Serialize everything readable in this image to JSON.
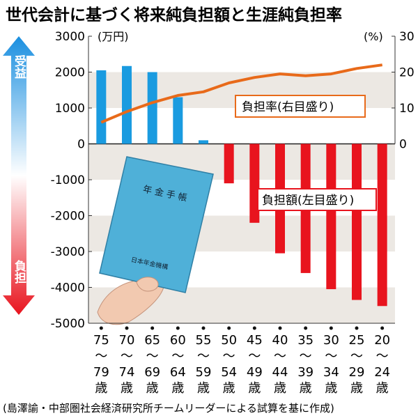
{
  "title": "世代会計に基づく将来純負担額と生涯純負担率",
  "left_unit": "(万円)",
  "right_unit": "(%)",
  "arrow_up_label": "受益",
  "arrow_down_label": "負担",
  "line_callout": "負担率(右目盛り)",
  "bar_callout": "負担額(左目盛り)",
  "passbook_title": "年 金 手 帳",
  "passbook_issuer": "日本年金機構",
  "source_note": "(島澤諭・中部圏社会経済研究所チームリーダーによる試算を基に作成)",
  "colors": {
    "positive_bar": "#1a9be0",
    "negative_bar": "#e8141e",
    "line": "#e86a1a",
    "band": "#ece8e3"
  },
  "chart_data": {
    "type": "bar",
    "categories": [
      [
        "75",
        "〜",
        "79",
        "歳"
      ],
      [
        "70",
        "〜",
        "74",
        "歳"
      ],
      [
        "65",
        "〜",
        "69",
        "歳"
      ],
      [
        "60",
        "〜",
        "64",
        "歳"
      ],
      [
        "55",
        "〜",
        "59",
        "歳"
      ],
      [
        "50",
        "〜",
        "54",
        "歳"
      ],
      [
        "45",
        "〜",
        "49",
        "歳"
      ],
      [
        "40",
        "〜",
        "44",
        "歳"
      ],
      [
        "35",
        "〜",
        "39",
        "歳"
      ],
      [
        "30",
        "〜",
        "34",
        "歳"
      ],
      [
        "25",
        "〜",
        "29",
        "歳"
      ],
      [
        "20",
        "〜",
        "24",
        "歳"
      ]
    ],
    "series": [
      {
        "type": "bar",
        "axis": "left",
        "values": [
          2050,
          2170,
          2000,
          1300,
          100,
          -1100,
          -2200,
          -3050,
          -3600,
          -4050,
          -4350,
          -4520
        ]
      },
      {
        "type": "line",
        "axis": "right",
        "values": [
          6,
          9,
          11.5,
          13.5,
          14.5,
          17,
          18.5,
          19.5,
          19,
          19.5,
          21,
          22
        ]
      }
    ],
    "left_axis": {
      "ylim": [
        -5000,
        3000
      ],
      "ticks": [
        "3000",
        "2000",
        "1000",
        "0",
        "-1000",
        "-2000",
        "-3000",
        "-4000",
        "-5000"
      ]
    },
    "right_axis": {
      "ylim": [
        -50,
        30
      ],
      "ticks": [
        "30",
        "20",
        "10",
        "0"
      ]
    },
    "grid": "alternating horizontal bands"
  }
}
